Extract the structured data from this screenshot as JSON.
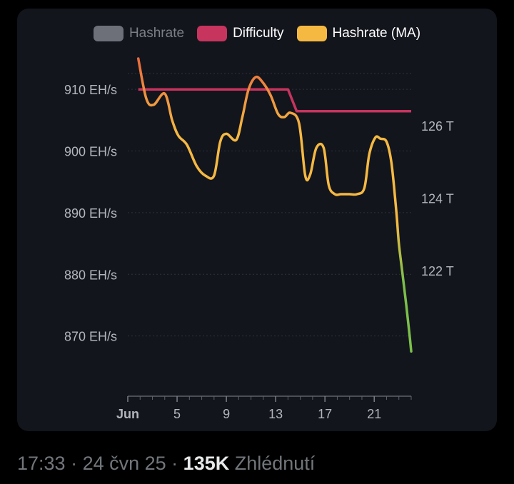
{
  "colors": {
    "card_bg": "#13151d",
    "hashrate": "#6e7079",
    "difficulty": "#c7345e",
    "ma_top": "#e96a3c",
    "ma_mid": "#f5b942",
    "ma_bottom": "#7bbf4a",
    "grid": "#2e313b",
    "tick_text": "#b4b6bd"
  },
  "chart_data": {
    "type": "line",
    "legend": [
      {
        "name": "Hashrate",
        "color": "#6e7079",
        "hidden": true
      },
      {
        "name": "Difficulty",
        "color": "#c7345e",
        "hidden": false
      },
      {
        "name": "Hashrate (MA)",
        "color": "#f5b942",
        "hidden": false
      }
    ],
    "x_axis": {
      "ticks": [
        "Jun",
        "5",
        "9",
        "13",
        "17",
        "21"
      ],
      "tick_days": [
        1,
        5,
        9,
        13,
        17,
        21
      ],
      "range": [
        1,
        24
      ]
    },
    "y_axis_left": {
      "ticks": [
        "910 EH/s",
        "900 EH/s",
        "890 EH/s",
        "880 EH/s",
        "870 EH/s"
      ],
      "tick_values": [
        910,
        900,
        890,
        880,
        870
      ],
      "range": [
        860,
        915
      ],
      "unit": "EH/s"
    },
    "y_axis_right": {
      "ticks": [
        "126 T",
        "124 T",
        "122 T"
      ],
      "tick_values": [
        126,
        124,
        122
      ],
      "range": [
        118.5,
        127.85
      ],
      "unit": "T"
    },
    "series": [
      {
        "name": "Difficulty",
        "axis": "right",
        "x": [
          1.85,
          14.0,
          14.7,
          24.0
        ],
        "y": [
          127.0,
          127.0,
          126.4,
          126.4
        ]
      },
      {
        "name": "Hashrate (MA)",
        "axis": "left",
        "x": [
          1.85,
          2.5,
          3.1,
          4.0,
          4.6,
          5.1,
          5.8,
          6.6,
          7.3,
          8.0,
          8.5,
          9.0,
          9.8,
          10.3,
          10.8,
          11.4,
          12.0,
          12.6,
          13.2,
          13.7,
          14.2,
          14.9,
          15.4,
          15.8,
          16.3,
          16.9,
          17.3,
          17.8,
          18.3,
          19.0,
          19.6,
          20.2,
          20.6,
          21.1,
          21.5,
          22.0,
          22.4,
          22.8,
          23.0,
          23.3,
          23.6,
          23.9,
          24.0
        ],
        "y": [
          915.0,
          908.5,
          907.5,
          909.3,
          905.0,
          902.5,
          901.0,
          897.5,
          896.0,
          896.0,
          901.5,
          902.8,
          901.8,
          905.5,
          910.0,
          912.0,
          911.0,
          909.0,
          906.0,
          905.5,
          906.2,
          904.5,
          896.0,
          896.2,
          900.5,
          900.5,
          894.5,
          893.0,
          893.0,
          893.0,
          893.0,
          894.0,
          899.5,
          902.2,
          902.0,
          901.5,
          898.0,
          890.0,
          885.0,
          880.0,
          875.0,
          869.5,
          867.5
        ]
      }
    ]
  },
  "footer": {
    "time": "17:33",
    "sep1": " · ",
    "date": "24 čvn 25",
    "sep2": " · ",
    "views": "135K",
    "views_label": " Zhlédnutí"
  }
}
